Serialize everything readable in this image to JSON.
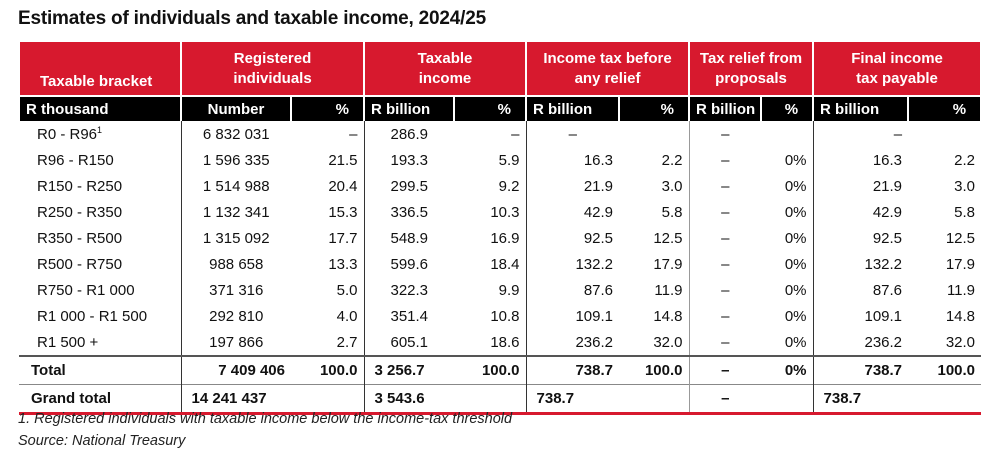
{
  "title": "Estimates of individuals and taxable income, 2024/25",
  "header_groups": [
    "Taxable bracket",
    "Registered individuals",
    "Taxable income",
    "Income tax before any relief",
    "Tax relief from proposals",
    "Final income tax payable"
  ],
  "header_groups_lines": [
    [
      "Taxable bracket"
    ],
    [
      "Registered",
      "individuals"
    ],
    [
      "Taxable",
      "income"
    ],
    [
      "Income tax before",
      "any relief"
    ],
    [
      "Tax relief from",
      "proposals"
    ],
    [
      "Final income",
      "tax payable"
    ]
  ],
  "subheaders": [
    "R thousand",
    "Number",
    "%",
    "R billion",
    "%",
    "R billion",
    "%",
    "R billion",
    "%",
    "R billion",
    "%"
  ],
  "rows": [
    {
      "bracket": "R0 - R96",
      "sup": "1",
      "cells": [
        "6 832 031",
        "–",
        "286.9",
        "–",
        "–",
        "",
        "–",
        "",
        "–",
        ""
      ]
    },
    {
      "bracket": "R96  - R150",
      "sup": "",
      "cells": [
        "1 596 335",
        "21.5",
        "193.3",
        "5.9",
        "16.3",
        "2.2",
        "–",
        "0%",
        "16.3",
        "2.2"
      ]
    },
    {
      "bracket": "R150 - R250",
      "sup": "",
      "cells": [
        "1 514 988",
        "20.4",
        "299.5",
        "9.2",
        "21.9",
        "3.0",
        "–",
        "0%",
        "21.9",
        "3.0"
      ]
    },
    {
      "bracket": "R250 - R350",
      "sup": "",
      "cells": [
        "1 132 341",
        "15.3",
        "336.5",
        "10.3",
        "42.9",
        "5.8",
        "–",
        "0%",
        "42.9",
        "5.8"
      ]
    },
    {
      "bracket": "R350 - R500",
      "sup": "",
      "cells": [
        "1 315 092",
        "17.7",
        "548.9",
        "16.9",
        "92.5",
        "12.5",
        "–",
        "0%",
        "92.5",
        "12.5"
      ]
    },
    {
      "bracket": "R500 - R750",
      "sup": "",
      "cells": [
        "988 658",
        "13.3",
        "599.6",
        "18.4",
        "132.2",
        "17.9",
        "–",
        "0%",
        "132.2",
        "17.9"
      ]
    },
    {
      "bracket": "R750 - R1 000",
      "sup": "",
      "cells": [
        "371 316",
        "5.0",
        "322.3",
        "9.9",
        "87.6",
        "11.9",
        "–",
        "0%",
        "87.6",
        "11.9"
      ]
    },
    {
      "bracket": "R1 000 - R1 500",
      "sup": "",
      "cells": [
        "292 810",
        "4.0",
        "351.4",
        "10.8",
        "109.1",
        "14.8",
        "–",
        "0%",
        "109.1",
        "14.8"
      ]
    },
    {
      "bracket": "R1 500 +",
      "sup": "",
      "cells": [
        "197 866",
        "2.7",
        "605.1",
        "18.6",
        "236.2",
        "32.0",
        "–",
        "0%",
        "236.2",
        "32.0"
      ]
    }
  ],
  "total": {
    "label": "Total",
    "cells": [
      "7 409 406",
      "100.0",
      "3 256.7",
      "100.0",
      "738.7",
      "100.0",
      "–",
      "0%",
      "738.7",
      "100.0"
    ]
  },
  "grand_total": {
    "label": "Grand total",
    "cells": [
      "14 241 437",
      "",
      "3 543.6",
      "",
      "738.7",
      "",
      "–",
      "",
      "738.7",
      ""
    ]
  },
  "footnote": "1. Registered individuals with taxable income below the income-tax threshold",
  "source": "Source: National Treasury",
  "colors": {
    "header_red": "#d7192e",
    "subheader_black": "#000000"
  }
}
